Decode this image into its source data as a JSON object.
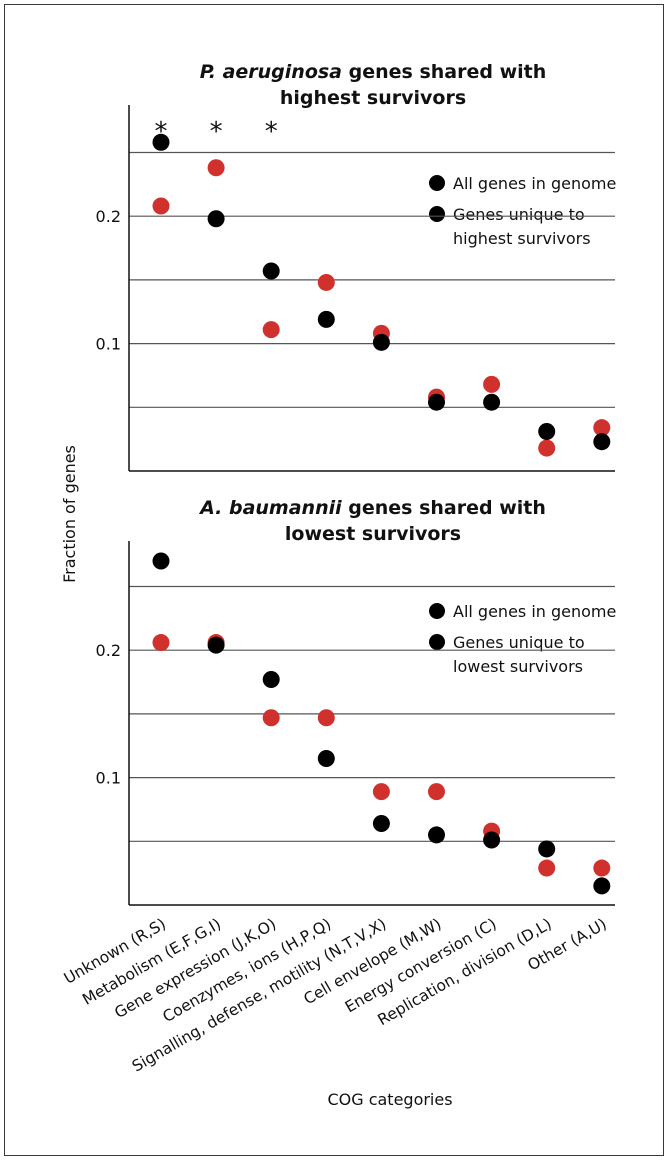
{
  "colors": {
    "all_genes": "#000000",
    "unique_genes": "#d0312d",
    "gridline": "#555555"
  },
  "shared": {
    "ylabel": "Fraction of genes",
    "xlabel": "COG categories",
    "categories": [
      "Unknown (R,S)",
      "Metabolism (E,F,G,I)",
      "Gene expression (J,K,O)",
      "Coenzymes, ions (H,P,Q)",
      "Signalling, defense, motility (N,T,V,X)",
      "Cell envelope (M,W)",
      "Energy conversion (C)",
      "Replication, division (D,L)",
      "Other (A,U)"
    ]
  },
  "chart_data": [
    {
      "type": "scatter",
      "title_italic": "P. aeruginosa",
      "title_rest": " genes shared with",
      "title_line2": "highest survivors",
      "ylim": [
        0,
        0.27
      ],
      "yticks": [
        0.1,
        0.2
      ],
      "gridlines": [
        0.05,
        0.1,
        0.15,
        0.2,
        0.25
      ],
      "significance_marker": "*",
      "significant_categories": [
        0,
        1,
        2
      ],
      "legend": {
        "series1": "All genes in genome",
        "series2_line1": "Genes unique to",
        "series2_line2": "highest survivors"
      },
      "categories": [
        "Unknown (R,S)",
        "Metabolism (E,F,G,I)",
        "Gene expression (J,K,O)",
        "Coenzymes, ions (H,P,Q)",
        "Signalling, defense, motility (N,T,V,X)",
        "Cell envelope (M,W)",
        "Energy conversion (C)",
        "Replication, division (D,L)",
        "Other (A,U)"
      ],
      "series": [
        {
          "name": "All genes in genome",
          "values": [
            0.258,
            0.198,
            0.157,
            0.119,
            0.101,
            0.054,
            0.054,
            0.031,
            0.023
          ]
        },
        {
          "name": "Genes unique to highest survivors",
          "values": [
            0.208,
            0.238,
            0.111,
            0.148,
            0.108,
            0.058,
            0.068,
            0.018,
            0.034
          ]
        }
      ]
    },
    {
      "type": "scatter",
      "title_italic": "A. baumannii",
      "title_rest": " genes shared with",
      "title_line2": "lowest survivors",
      "ylim": [
        0,
        0.27
      ],
      "yticks": [
        0.1,
        0.2
      ],
      "gridlines": [
        0.05,
        0.1,
        0.15,
        0.2,
        0.25
      ],
      "legend": {
        "series1": "All genes in genome",
        "series2_line1": "Genes unique to",
        "series2_line2": "lowest survivors"
      },
      "categories": [
        "Unknown (R,S)",
        "Metabolism (E,F,G,I)",
        "Gene expression (J,K,O)",
        "Coenzymes, ions (H,P,Q)",
        "Signalling, defense, motility (N,T,V,X)",
        "Cell envelope (M,W)",
        "Energy conversion (C)",
        "Replication, division (D,L)",
        "Other (A,U)"
      ],
      "series": [
        {
          "name": "All genes in genome",
          "values": [
            0.27,
            0.204,
            0.177,
            0.115,
            0.064,
            0.055,
            0.051,
            0.044,
            0.015
          ]
        },
        {
          "name": "Genes unique to lowest survivors",
          "values": [
            0.206,
            0.206,
            0.147,
            0.147,
            0.089,
            0.089,
            0.058,
            0.029,
            0.029
          ]
        }
      ]
    }
  ]
}
